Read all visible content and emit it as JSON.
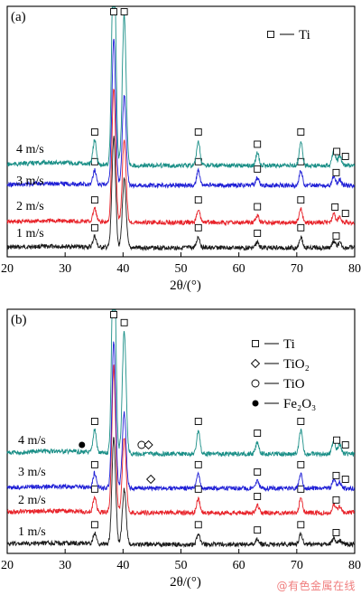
{
  "chart_data": [
    {
      "type": "line",
      "panel_label": "(a)",
      "xlabel": "2θ/(°)",
      "xlim": [
        20,
        80
      ],
      "xticks": [
        20,
        30,
        40,
        50,
        60,
        70,
        80
      ],
      "legend": [
        {
          "marker": "square",
          "name": "Ti"
        }
      ],
      "peaks": [
        {
          "pos": 35.1,
          "h": 0.1
        },
        {
          "pos": 38.4,
          "h": 1.0
        },
        {
          "pos": 40.2,
          "h": 0.62
        },
        {
          "pos": 53.0,
          "h": 0.1
        },
        {
          "pos": 63.2,
          "h": 0.05
        },
        {
          "pos": 70.7,
          "h": 0.1
        },
        {
          "pos": 76.4,
          "h": 0.06
        },
        {
          "pos": 77.4,
          "h": 0.04
        }
      ],
      "series": [
        {
          "name": "1 m/s",
          "color": "#1a1a1a",
          "scale": 0.45,
          "markers": [
            {
              "x": 35.1,
              "m": "square"
            },
            {
              "x": 53.0,
              "m": "square"
            },
            {
              "x": 63.2,
              "m": "square"
            },
            {
              "x": 70.7,
              "m": "square"
            },
            {
              "x": 76.8,
              "m": "square"
            }
          ]
        },
        {
          "name": "2 m/s",
          "color": "#e8232a",
          "scale": 0.55,
          "markers": [
            {
              "x": 35.1,
              "m": "square"
            },
            {
              "x": 53.0,
              "m": "square"
            },
            {
              "x": 63.2,
              "m": "square"
            },
            {
              "x": 70.7,
              "m": "square"
            },
            {
              "x": 76.6,
              "m": "square"
            },
            {
              "x": 78.4,
              "m": "square"
            }
          ]
        },
        {
          "name": "3 m/s",
          "color": "#1f1fd6",
          "scale": 0.6,
          "markers": [
            {
              "x": 35.1,
              "m": "square"
            },
            {
              "x": 53.0,
              "m": "square"
            },
            {
              "x": 63.2,
              "m": "square"
            },
            {
              "x": 70.7,
              "m": "square"
            },
            {
              "x": 76.8,
              "m": "square"
            }
          ]
        },
        {
          "name": "4 m/s",
          "color": "#1a8f87",
          "scale": 1.0,
          "markers": [
            {
              "x": 35.1,
              "m": "square"
            },
            {
              "x": 38.4,
              "m": "square"
            },
            {
              "x": 40.2,
              "m": "square"
            },
            {
              "x": 53.0,
              "m": "square"
            },
            {
              "x": 63.2,
              "m": "square"
            },
            {
              "x": 70.7,
              "m": "square"
            },
            {
              "x": 76.9,
              "m": "square"
            },
            {
              "x": 78.4,
              "m": "square"
            }
          ]
        }
      ]
    },
    {
      "type": "line",
      "panel_label": "(b)",
      "xlabel": "2θ/(°)",
      "xlim": [
        20,
        80
      ],
      "xticks": [
        20,
        30,
        40,
        50,
        60,
        70,
        80
      ],
      "legend": [
        {
          "marker": "square",
          "name": "Ti"
        },
        {
          "marker": "diamond",
          "name": "TiO₂"
        },
        {
          "marker": "circle",
          "name": "TiO"
        },
        {
          "marker": "dot",
          "name": "Fe₂O₃"
        }
      ],
      "peaks": [
        {
          "pos": 35.1,
          "h": 0.1
        },
        {
          "pos": 38.4,
          "h": 1.0
        },
        {
          "pos": 40.2,
          "h": 0.52
        },
        {
          "pos": 53.0,
          "h": 0.1
        },
        {
          "pos": 63.2,
          "h": 0.05
        },
        {
          "pos": 70.7,
          "h": 0.1
        },
        {
          "pos": 76.4,
          "h": 0.06
        },
        {
          "pos": 77.4,
          "h": 0.04
        }
      ],
      "series": [
        {
          "name": "1 m/s",
          "color": "#1a1a1a",
          "scale": 0.45,
          "markers": [
            {
              "x": 35.1,
              "m": "square"
            },
            {
              "x": 53.0,
              "m": "square"
            },
            {
              "x": 63.2,
              "m": "square"
            },
            {
              "x": 70.7,
              "m": "square"
            },
            {
              "x": 76.8,
              "m": "square"
            }
          ]
        },
        {
          "name": "2 m/s",
          "color": "#e8232a",
          "scale": 0.62,
          "markers": [
            {
              "x": 35.1,
              "m": "square"
            },
            {
              "x": 53.0,
              "m": "square"
            },
            {
              "x": 63.2,
              "m": "square"
            },
            {
              "x": 70.7,
              "m": "square"
            },
            {
              "x": 76.8,
              "m": "square"
            }
          ]
        },
        {
          "name": "3 m/s",
          "color": "#1f1fd6",
          "scale": 0.62,
          "markers": [
            {
              "x": 35.1,
              "m": "square"
            },
            {
              "x": 44.8,
              "m": "diamond"
            },
            {
              "x": 53.0,
              "m": "square"
            },
            {
              "x": 63.2,
              "m": "square"
            },
            {
              "x": 70.7,
              "m": "square"
            },
            {
              "x": 76.8,
              "m": "square"
            },
            {
              "x": 78.4,
              "m": "square"
            }
          ]
        },
        {
          "name": "4 m/s",
          "color": "#1a8f87",
          "scale": 1.0,
          "markers": [
            {
              "x": 32.9,
              "m": "dot"
            },
            {
              "x": 35.1,
              "m": "square"
            },
            {
              "x": 38.4,
              "m": "square"
            },
            {
              "x": 40.2,
              "m": "square"
            },
            {
              "x": 43.2,
              "m": "circle"
            },
            {
              "x": 44.4,
              "m": "diamond"
            },
            {
              "x": 53.0,
              "m": "square"
            },
            {
              "x": 63.2,
              "m": "square"
            },
            {
              "x": 70.7,
              "m": "square"
            },
            {
              "x": 76.9,
              "m": "square"
            },
            {
              "x": 78.4,
              "m": "square"
            }
          ]
        }
      ]
    }
  ],
  "watermark": "@有色金属在线"
}
